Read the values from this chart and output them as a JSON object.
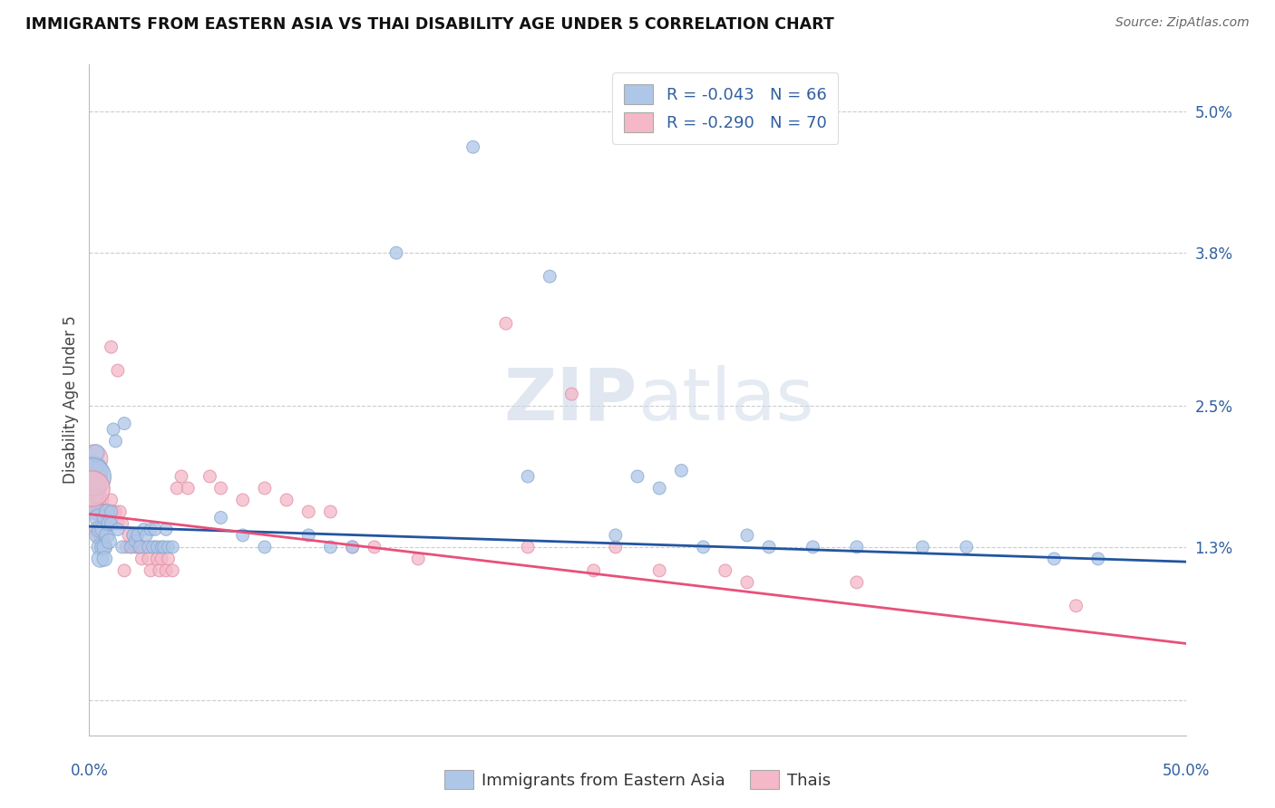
{
  "title": "IMMIGRANTS FROM EASTERN ASIA VS THAI DISABILITY AGE UNDER 5 CORRELATION CHART",
  "source": "Source: ZipAtlas.com",
  "ylabel": "Disability Age Under 5",
  "ytick_vals": [
    0.0,
    0.013,
    0.025,
    0.038,
    0.05
  ],
  "ytick_labels": [
    "",
    "1.3%",
    "2.5%",
    "3.8%",
    "5.0%"
  ],
  "xlim": [
    0.0,
    0.5
  ],
  "ylim": [
    -0.003,
    0.054
  ],
  "color_blue": "#aec6e8",
  "color_pink": "#f4b8c8",
  "line_color_blue": "#2255a0",
  "line_color_pink": "#e8507a",
  "watermark_color": "#ccd8e8",
  "blue_line_y0": 0.01475,
  "blue_line_y1": 0.01175,
  "pink_line_y0": 0.0158,
  "pink_line_y1": 0.0048,
  "blue_scatter": [
    [
      0.002,
      0.0195
    ],
    [
      0.003,
      0.0175
    ],
    [
      0.003,
      0.016
    ],
    [
      0.004,
      0.0155
    ],
    [
      0.004,
      0.014
    ],
    [
      0.005,
      0.0145
    ],
    [
      0.005,
      0.013
    ],
    [
      0.005,
      0.012
    ],
    [
      0.006,
      0.0145
    ],
    [
      0.006,
      0.013
    ],
    [
      0.007,
      0.0155
    ],
    [
      0.007,
      0.013
    ],
    [
      0.007,
      0.012
    ],
    [
      0.008,
      0.016
    ],
    [
      0.008,
      0.014
    ],
    [
      0.009,
      0.015
    ],
    [
      0.009,
      0.0135
    ],
    [
      0.01,
      0.016
    ],
    [
      0.01,
      0.015
    ],
    [
      0.011,
      0.023
    ],
    [
      0.012,
      0.022
    ],
    [
      0.013,
      0.0145
    ],
    [
      0.015,
      0.013
    ],
    [
      0.016,
      0.0235
    ],
    [
      0.019,
      0.013
    ],
    [
      0.02,
      0.014
    ],
    [
      0.021,
      0.0135
    ],
    [
      0.022,
      0.014
    ],
    [
      0.023,
      0.013
    ],
    [
      0.025,
      0.0145
    ],
    [
      0.026,
      0.014
    ],
    [
      0.027,
      0.013
    ],
    [
      0.028,
      0.0145
    ],
    [
      0.029,
      0.013
    ],
    [
      0.03,
      0.0145
    ],
    [
      0.031,
      0.013
    ],
    [
      0.033,
      0.013
    ],
    [
      0.034,
      0.013
    ],
    [
      0.035,
      0.0145
    ],
    [
      0.036,
      0.013
    ],
    [
      0.038,
      0.013
    ],
    [
      0.06,
      0.0155
    ],
    [
      0.07,
      0.014
    ],
    [
      0.08,
      0.013
    ],
    [
      0.1,
      0.014
    ],
    [
      0.11,
      0.013
    ],
    [
      0.12,
      0.013
    ],
    [
      0.14,
      0.038
    ],
    [
      0.175,
      0.047
    ],
    [
      0.2,
      0.019
    ],
    [
      0.21,
      0.036
    ],
    [
      0.24,
      0.014
    ],
    [
      0.25,
      0.019
    ],
    [
      0.26,
      0.018
    ],
    [
      0.27,
      0.0195
    ],
    [
      0.28,
      0.013
    ],
    [
      0.3,
      0.014
    ],
    [
      0.31,
      0.013
    ],
    [
      0.33,
      0.013
    ],
    [
      0.35,
      0.013
    ],
    [
      0.38,
      0.013
    ],
    [
      0.4,
      0.013
    ],
    [
      0.44,
      0.012
    ],
    [
      0.46,
      0.012
    ],
    [
      0.003,
      0.021
    ]
  ],
  "pink_scatter": [
    [
      0.002,
      0.0205
    ],
    [
      0.002,
      0.019
    ],
    [
      0.003,
      0.018
    ],
    [
      0.003,
      0.017
    ],
    [
      0.004,
      0.018
    ],
    [
      0.004,
      0.016
    ],
    [
      0.004,
      0.0145
    ],
    [
      0.005,
      0.017
    ],
    [
      0.005,
      0.016
    ],
    [
      0.005,
      0.014
    ],
    [
      0.006,
      0.016
    ],
    [
      0.006,
      0.015
    ],
    [
      0.006,
      0.0135
    ],
    [
      0.007,
      0.016
    ],
    [
      0.007,
      0.0145
    ],
    [
      0.007,
      0.013
    ],
    [
      0.008,
      0.016
    ],
    [
      0.008,
      0.015
    ],
    [
      0.009,
      0.016
    ],
    [
      0.009,
      0.015
    ],
    [
      0.01,
      0.03
    ],
    [
      0.01,
      0.017
    ],
    [
      0.011,
      0.016
    ],
    [
      0.012,
      0.016
    ],
    [
      0.013,
      0.028
    ],
    [
      0.013,
      0.015
    ],
    [
      0.014,
      0.016
    ],
    [
      0.015,
      0.015
    ],
    [
      0.016,
      0.011
    ],
    [
      0.017,
      0.013
    ],
    [
      0.018,
      0.014
    ],
    [
      0.019,
      0.013
    ],
    [
      0.02,
      0.014
    ],
    [
      0.021,
      0.013
    ],
    [
      0.022,
      0.013
    ],
    [
      0.023,
      0.013
    ],
    [
      0.024,
      0.012
    ],
    [
      0.025,
      0.013
    ],
    [
      0.027,
      0.012
    ],
    [
      0.028,
      0.011
    ],
    [
      0.03,
      0.013
    ],
    [
      0.031,
      0.012
    ],
    [
      0.032,
      0.011
    ],
    [
      0.033,
      0.012
    ],
    [
      0.035,
      0.011
    ],
    [
      0.036,
      0.012
    ],
    [
      0.038,
      0.011
    ],
    [
      0.04,
      0.018
    ],
    [
      0.042,
      0.019
    ],
    [
      0.045,
      0.018
    ],
    [
      0.055,
      0.019
    ],
    [
      0.06,
      0.018
    ],
    [
      0.07,
      0.017
    ],
    [
      0.08,
      0.018
    ],
    [
      0.09,
      0.017
    ],
    [
      0.1,
      0.016
    ],
    [
      0.11,
      0.016
    ],
    [
      0.12,
      0.013
    ],
    [
      0.13,
      0.013
    ],
    [
      0.15,
      0.012
    ],
    [
      0.19,
      0.032
    ],
    [
      0.2,
      0.013
    ],
    [
      0.22,
      0.026
    ],
    [
      0.23,
      0.011
    ],
    [
      0.24,
      0.013
    ],
    [
      0.26,
      0.011
    ],
    [
      0.29,
      0.011
    ],
    [
      0.3,
      0.01
    ],
    [
      0.35,
      0.01
    ],
    [
      0.45,
      0.008
    ]
  ],
  "blue_large_pts": [
    [
      0.001,
      0.019
    ]
  ],
  "pink_large_pts": [
    [
      0.001,
      0.018
    ]
  ]
}
